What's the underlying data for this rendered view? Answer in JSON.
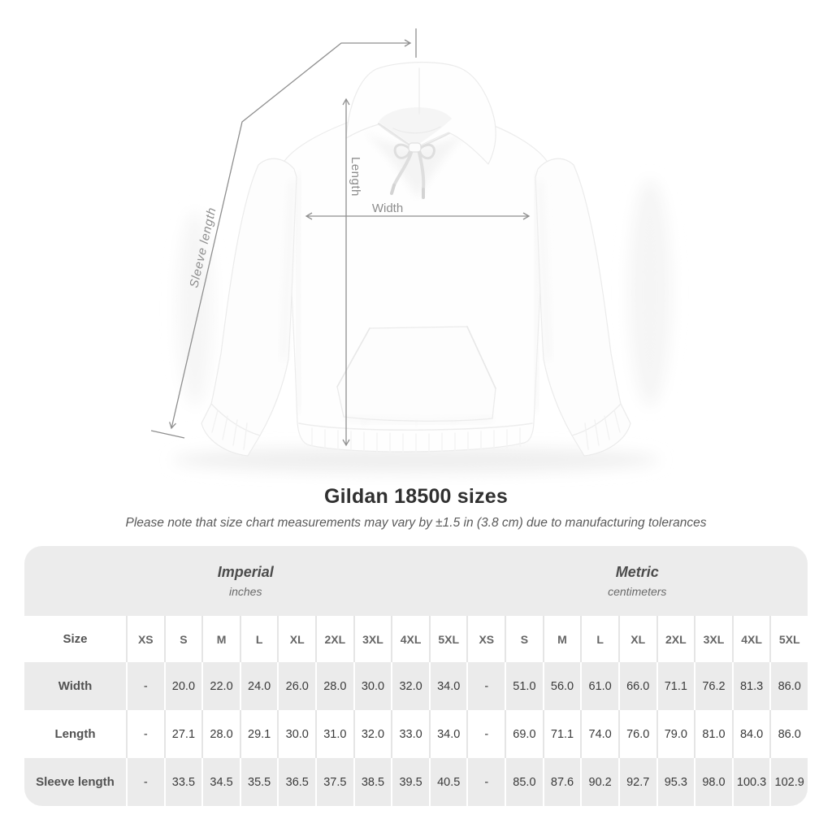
{
  "header": {
    "title": "Gildan 18500 sizes",
    "subtitle": "Please note that size chart measurements may vary by ±1.5 in (3.8 cm) due to manufacturing tolerances"
  },
  "figure": {
    "labels": {
      "sleeve_length": "Sleeve length",
      "length": "Length",
      "width": "Width"
    },
    "arrow_color": "#8f8f8f"
  },
  "colors": {
    "band_gray": "#ececec",
    "row_gray": "#ebebeb",
    "separator_on_white": "#e5e5e5",
    "arrow_gray": "#8f8f8f"
  },
  "chart_data": {
    "type": "table",
    "title": "Gildan 18500 sizes",
    "note": "Please note that size chart measurements may vary by ±1.5 in (3.8 cm) due to manufacturing tolerances",
    "size_header": "Size",
    "unit_groups": [
      {
        "name": "Imperial",
        "unit": "inches"
      },
      {
        "name": "Metric",
        "unit": "centimeters"
      }
    ],
    "sizes": [
      "XS",
      "S",
      "M",
      "L",
      "XL",
      "2XL",
      "3XL",
      "4XL",
      "5XL"
    ],
    "measurements": [
      {
        "label": "Width",
        "imperial": [
          "-",
          "20.0",
          "22.0",
          "24.0",
          "26.0",
          "28.0",
          "30.0",
          "32.0",
          "34.0"
        ],
        "metric": [
          "-",
          "51.0",
          "56.0",
          "61.0",
          "66.0",
          "71.1",
          "76.2",
          "81.3",
          "86.0"
        ]
      },
      {
        "label": "Length",
        "imperial": [
          "-",
          "27.1",
          "28.0",
          "29.1",
          "30.0",
          "31.0",
          "32.0",
          "33.0",
          "34.0"
        ],
        "metric": [
          "-",
          "69.0",
          "71.1",
          "74.0",
          "76.0",
          "79.0",
          "81.0",
          "84.0",
          "86.0"
        ]
      },
      {
        "label": "Sleeve length",
        "imperial": [
          "-",
          "33.5",
          "34.5",
          "35.5",
          "36.5",
          "37.5",
          "38.5",
          "39.5",
          "40.5"
        ],
        "metric": [
          "-",
          "85.0",
          "87.6",
          "90.2",
          "92.7",
          "95.3",
          "98.0",
          "100.3",
          "102.9"
        ]
      }
    ]
  }
}
